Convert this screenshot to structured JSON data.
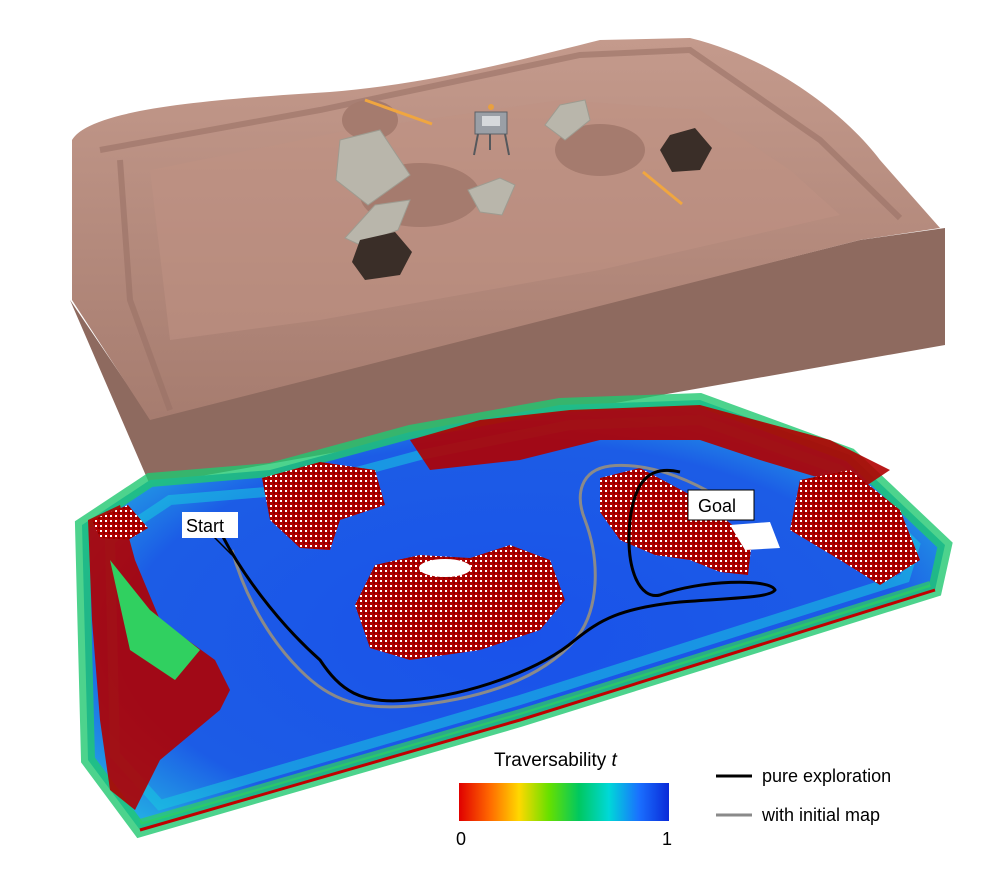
{
  "labels": {
    "start": "Start",
    "goal": "Goal"
  },
  "colorbar": {
    "title": "Traversability",
    "title_var": "t",
    "min_label": "0",
    "max_label": "1",
    "stops": [
      "#e00000",
      "#ff6600",
      "#ffd800",
      "#66e000",
      "#00c860",
      "#00d8d8",
      "#1a70ff",
      "#0a2ad8"
    ]
  },
  "legend": {
    "items": [
      {
        "label": "pure exploration",
        "color": "#000000"
      },
      {
        "label": "with initial map",
        "color": "#8a8a8a"
      }
    ]
  },
  "colors": {
    "terrain": "#b48a7c",
    "terrain_shadow": "#8f6b60",
    "rock_dark": "#3a2e28",
    "rock_light": "#b9b6ab",
    "stick": "#f0a640",
    "map_blue": "#1d4fe0",
    "map_cyan": "#18c8e0",
    "map_green": "#30d060",
    "map_red": "#b40000"
  }
}
